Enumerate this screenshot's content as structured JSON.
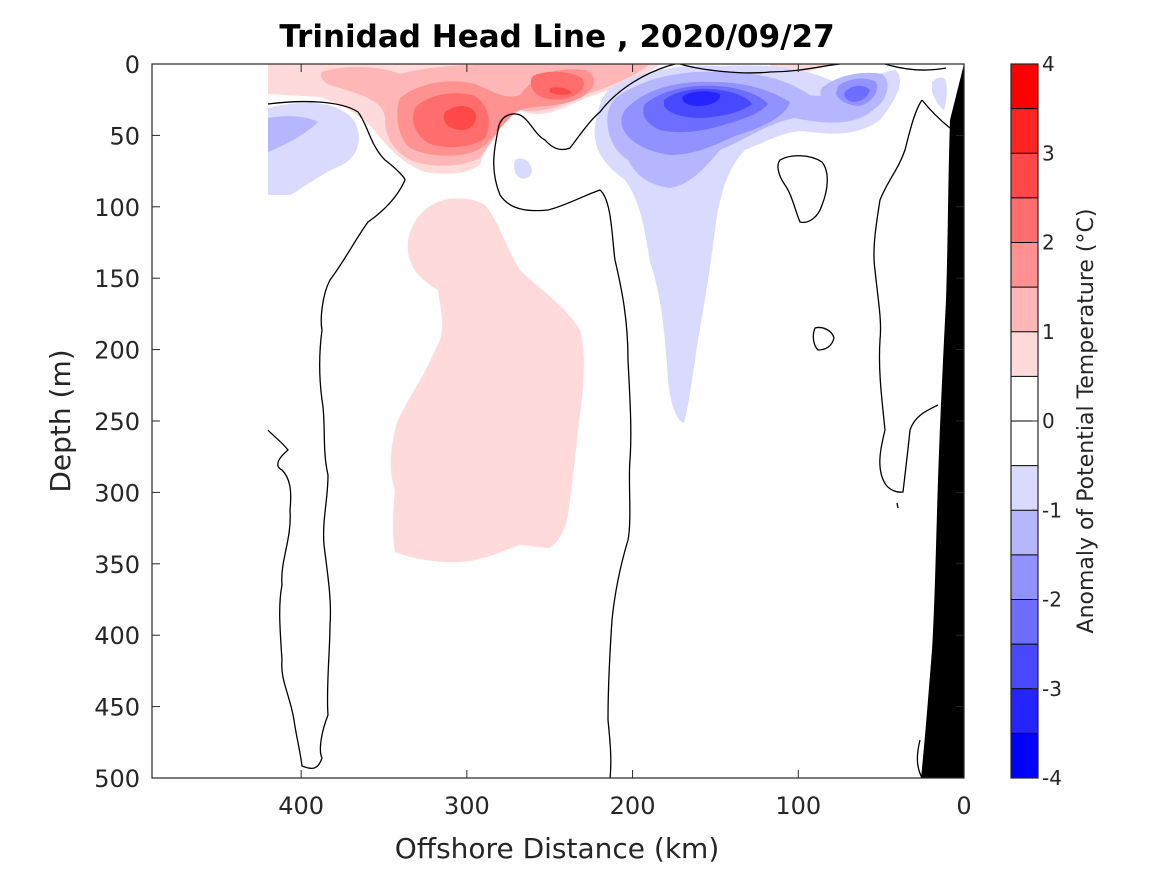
{
  "chart_data": {
    "type": "contour",
    "title": "Trinidad Head Line , 2020/09/27",
    "xlabel": "Offshore Distance (km)",
    "ylabel": "Depth (m)",
    "xlim": [
      490,
      0
    ],
    "ylim": [
      0,
      500
    ],
    "x_reversed": true,
    "y_reversed": true,
    "x_ticks": [
      400,
      300,
      200,
      100,
      0
    ],
    "y_ticks": [
      0,
      50,
      100,
      150,
      200,
      250,
      300,
      350,
      400,
      450,
      500
    ],
    "colorbar": {
      "label": "Anomaly of Potential Temperature (°C)",
      "range": [
        -4,
        4
      ],
      "levels": [
        -4,
        -3.5,
        -3,
        -2.5,
        -2,
        -1.5,
        -1,
        -0.5,
        0,
        0.5,
        1,
        1.5,
        2,
        2.5,
        3,
        3.5,
        4
      ],
      "ticks": [
        -4,
        -3,
        -2,
        -1,
        0,
        1,
        2,
        3,
        4
      ],
      "colors": [
        "#0000ff",
        "#2424ff",
        "#4848ff",
        "#6d6dff",
        "#9191ff",
        "#b6b6ff",
        "#dadaff",
        "#ffffff",
        "#ffffff",
        "#ffdada",
        "#ffb6b6",
        "#ff9191",
        "#ff6d6d",
        "#ff4848",
        "#ff2424",
        "#ff0000"
      ]
    },
    "features": [
      {
        "kind": "warm_anomaly",
        "center_km": 300,
        "center_depth_m": 35,
        "peak": 2.5
      },
      {
        "kind": "warm_anomaly",
        "center_km": 245,
        "center_depth_m": 20,
        "peak": 2.5
      },
      {
        "kind": "warm_anomaly",
        "center_km": 290,
        "center_depth_m": 230,
        "peak": 0.75
      },
      {
        "kind": "cold_anomaly",
        "center_km": 160,
        "center_depth_m": 25,
        "peak": -3.25
      },
      {
        "kind": "cold_anomaly",
        "center_km": 65,
        "center_depth_m": 20,
        "peak": -2.0
      },
      {
        "kind": "cold_anomaly",
        "center_km": 410,
        "center_depth_m": 45,
        "peak": -1.25
      },
      {
        "kind": "cold_anomaly",
        "center_km": 170,
        "center_depth_m": 200,
        "peak": -0.75
      }
    ],
    "bathymetry": {
      "color": "#000000",
      "shelf": [
        [
          0,
          0
        ],
        [
          10,
          90
        ],
        [
          16,
          200
        ],
        [
          22,
          300
        ],
        [
          27,
          400
        ],
        [
          33,
          500
        ]
      ]
    }
  }
}
